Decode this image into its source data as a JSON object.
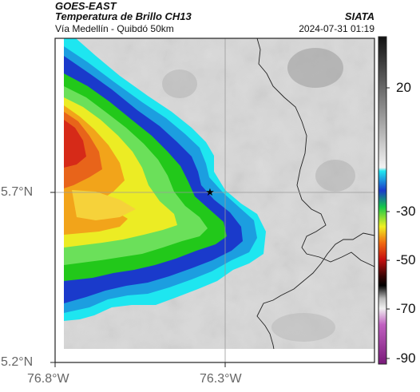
{
  "header": {
    "title": "GOES-EAST",
    "subtitle": "Temperatura de Brillo CH13",
    "location": "Vía Medellín - Quibdó 50km",
    "org": "SIATA",
    "datetime": "2024-07-31 01:19"
  },
  "axes": {
    "lat_ticks": [
      "5.7°N",
      "5.2°N"
    ],
    "lon_ticks": [
      "76.8°W",
      "76.3°W"
    ]
  },
  "colorbar": {
    "ticks": [
      "20",
      "-30",
      "-50",
      "-70",
      "-90"
    ]
  },
  "marker": {
    "name": "star-marker",
    "symbol": "★"
  },
  "colors": {
    "cold_core": "#e8301a",
    "green": "#27c81a",
    "blue": "#1838c8",
    "cyan": "#1ee6f0",
    "background_gray": "#d6d6d6"
  }
}
